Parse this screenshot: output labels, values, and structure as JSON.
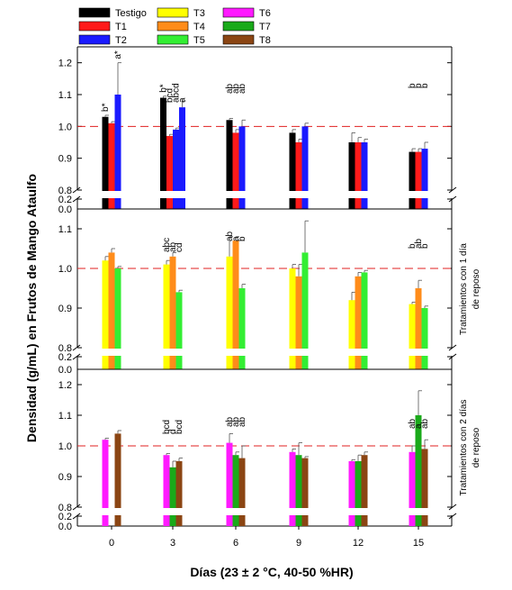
{
  "chart_data": {
    "type": "bar",
    "ylabel": "Densidad (g/mL) en Frutos de Mango Ataulfo",
    "xlabel": "Días (23 ± 2 °C, 40-50 %HR)",
    "x_categories": [
      "0",
      "3",
      "6",
      "9",
      "12",
      "15"
    ],
    "reference_line": 1.0,
    "legend": [
      {
        "name": "Testigo",
        "color": "#000000"
      },
      {
        "name": "T1",
        "color": "#ff1a1a"
      },
      {
        "name": "T2",
        "color": "#1a1aff"
      },
      {
        "name": "T3",
        "color": "#ffff00"
      },
      {
        "name": "T4",
        "color": "#ff8c1a"
      },
      {
        "name": "T5",
        "color": "#33ee33"
      },
      {
        "name": "T6",
        "color": "#ff1aff"
      },
      {
        "name": "T7",
        "color": "#1aaa1a"
      },
      {
        "name": "T8",
        "color": "#8b4513"
      }
    ],
    "panels": [
      {
        "right_label": [],
        "yticks": [
          0.0,
          0.2,
          0.8,
          0.9,
          1.0,
          1.1,
          1.2
        ],
        "series": [
          {
            "name": "Testigo",
            "color": "#000000",
            "values": [
              1.03,
              1.09,
              1.02,
              0.98,
              0.95,
              0.92
            ],
            "errors": [
              0.005,
              0.005,
              0.005,
              0.01,
              0.03,
              0.01
            ]
          },
          {
            "name": "T1",
            "color": "#ff1a1a",
            "values": [
              1.01,
              0.97,
              0.98,
              0.95,
              0.95,
              0.92
            ],
            "errors": [
              0.005,
              0.005,
              0.01,
              0.01,
              0.015,
              0.01
            ]
          },
          {
            "name": "T2",
            "color": "#1a1aff",
            "values": [
              1.1,
              0.99,
              1.0,
              1.0,
              0.95,
              0.93
            ],
            "errors": [
              0.1,
              0.005,
              0.02,
              0.01,
              0.01,
              0.02
            ]
          },
          {
            "name": "extra",
            "color": "#1a1aff",
            "values": [
              null,
              1.06,
              null,
              null,
              null,
              null
            ],
            "errors": [
              0,
              0.02,
              0,
              0,
              0,
              0
            ]
          }
        ],
        "labels": [
          {
            "group": 0,
            "series": 0,
            "text": "b*"
          },
          {
            "group": 0,
            "series": 2,
            "text": "a*"
          },
          {
            "group": 1,
            "series": 0,
            "text": "b*"
          },
          {
            "group": 1,
            "series": 1,
            "text": "bcd"
          },
          {
            "group": 1,
            "series": 2,
            "text": "abcd"
          },
          {
            "group": 1,
            "series": 3,
            "text": "a"
          },
          {
            "group": 2,
            "series": 0,
            "text": "ab"
          },
          {
            "group": 2,
            "series": 1,
            "text": "ab"
          },
          {
            "group": 2,
            "series": 2,
            "text": "ab"
          },
          {
            "group": 5,
            "series": 0,
            "text": "b"
          },
          {
            "group": 5,
            "series": 1,
            "text": "b"
          },
          {
            "group": 5,
            "series": 2,
            "text": "b"
          }
        ]
      },
      {
        "right_label": [
          "Tratamientos con 1 día",
          "de reposo"
        ],
        "yticks": [
          0.0,
          0.2,
          0.8,
          0.9,
          1.0,
          1.1
        ],
        "series": [
          {
            "name": "T3",
            "color": "#ffff00",
            "values": [
              1.02,
              1.01,
              1.03,
              1.0,
              0.92,
              0.91
            ],
            "errors": [
              0.01,
              0.01,
              0.05,
              0.01,
              0.02,
              0.005
            ]
          },
          {
            "name": "T4",
            "color": "#ff8c1a",
            "values": [
              1.04,
              1.03,
              1.07,
              0.98,
              0.98,
              0.95
            ],
            "errors": [
              0.01,
              0.01,
              0.01,
              0.03,
              0.01,
              0.02
            ]
          },
          {
            "name": "T5",
            "color": "#33ee33",
            "values": [
              1.0,
              0.94,
              0.95,
              1.04,
              0.99,
              0.9
            ],
            "errors": [
              0.005,
              0.005,
              0.01,
              0.08,
              0.005,
              0.005
            ]
          }
        ],
        "labels": [
          {
            "group": 1,
            "series": 0,
            "text": "abc"
          },
          {
            "group": 1,
            "series": 1,
            "text": "ab"
          },
          {
            "group": 1,
            "series": 2,
            "text": "cd"
          },
          {
            "group": 2,
            "series": 0,
            "text": "ab"
          },
          {
            "group": 2,
            "series": 1,
            "text": "a"
          },
          {
            "group": 2,
            "series": 2,
            "text": "b"
          },
          {
            "group": 5,
            "series": 0,
            "text": "b"
          },
          {
            "group": 5,
            "series": 1,
            "text": "ab"
          },
          {
            "group": 5,
            "series": 2,
            "text": "b"
          }
        ]
      },
      {
        "right_label": [
          "Tratamientos con 2 días",
          "de reposo"
        ],
        "yticks": [
          0.0,
          0.2,
          0.8,
          0.9,
          1.0,
          1.1,
          1.2
        ],
        "series": [
          {
            "name": "T6",
            "color": "#ff1aff",
            "values": [
              1.02,
              0.97,
              1.01,
              0.98,
              0.95,
              0.98
            ],
            "errors": [
              0.005,
              0.005,
              0.03,
              0.01,
              0.005,
              0.02
            ]
          },
          {
            "name": "T7",
            "color": "#1aaa1a",
            "values": [
              null,
              0.93,
              0.97,
              0.97,
              0.95,
              1.1
            ],
            "errors": [
              0,
              0.02,
              0.01,
              0.04,
              0.02,
              0.08
            ]
          },
          {
            "name": "T8",
            "color": "#8b4513",
            "values": [
              1.04,
              0.95,
              0.96,
              0.96,
              0.97,
              0.99
            ],
            "errors": [
              0.01,
              0.01,
              0.04,
              0.005,
              0.01,
              0.03
            ]
          }
        ],
        "labels": [
          {
            "group": 1,
            "series": 0,
            "text": "bcd"
          },
          {
            "group": 1,
            "series": 1,
            "text": "d"
          },
          {
            "group": 1,
            "series": 2,
            "text": "bcd"
          },
          {
            "group": 2,
            "series": 0,
            "text": "ab"
          },
          {
            "group": 2,
            "series": 1,
            "text": "ab"
          },
          {
            "group": 2,
            "series": 2,
            "text": "ab"
          },
          {
            "group": 5,
            "series": 0,
            "text": "ab"
          },
          {
            "group": 5,
            "series": 1,
            "text": "a"
          },
          {
            "group": 5,
            "series": 2,
            "text": "ab"
          }
        ]
      }
    ]
  }
}
